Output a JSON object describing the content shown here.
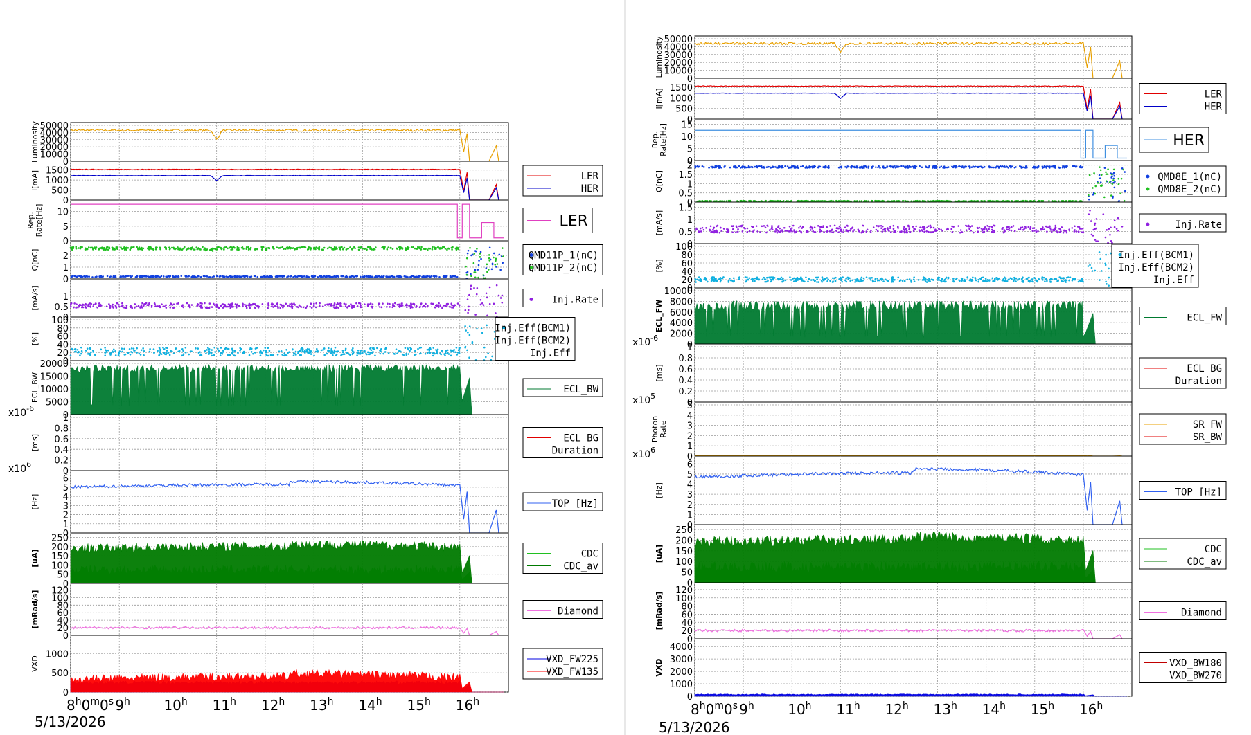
{
  "columns": [
    {
      "date": "5/13/2026",
      "time_ticks": [
        "8",
        "9",
        "10",
        "11",
        "12",
        "13",
        "14",
        "15",
        "16"
      ],
      "panels": [
        {
          "id": "lum",
          "ylabel": "Luminosity",
          "yticks": [
            "50000",
            "40000",
            "30000",
            "20000",
            "10000",
            "0"
          ],
          "ymax": 50000,
          "legend_style": "none",
          "series": [
            {
              "name": "",
              "color": "#e8a000",
              "kind": "line",
              "level": 43000,
              "noise": 1500,
              "dips": [
                [
                  11,
                  0.7
                ]
              ],
              "tail": "lum"
            }
          ]
        },
        {
          "id": "cur",
          "ylabel": "I[mA]",
          "yticks": [
            "1500",
            "1000",
            "500",
            "0"
          ],
          "ymax": 1800,
          "legend_style": "box",
          "series": [
            {
              "name": "LER",
              "color": "#e00000",
              "kind": "line",
              "level": 1530,
              "noise": 15,
              "tail": "cur"
            },
            {
              "name": "HER",
              "color": "#0000c8",
              "kind": "line",
              "level": 1220,
              "noise": 10,
              "dips": [
                [
                  11,
                  0.8
                ]
              ],
              "tail": "cur"
            }
          ]
        },
        {
          "id": "rep",
          "ylabel": "Rep. Rate[Hz]",
          "yticks": [
            "10",
            "5",
            "0"
          ],
          "ymax": 13,
          "legend_style": "big",
          "series": [
            {
              "name": "LER",
              "color": "#e040c0",
              "kind": "step",
              "level": 12.5,
              "noise": 0,
              "tail": "rep"
            }
          ]
        },
        {
          "id": "q",
          "ylabel": "Q[nC]",
          "yticks": [
            "2",
            "1",
            "0"
          ],
          "ymax": 3,
          "legend_style": "box",
          "series": [
            {
              "name": "QMD11P_1(nC)",
              "color": "#1040e0",
              "kind": "dots",
              "level": 0.2,
              "noise": 0.05
            },
            {
              "name": "QMD11P_2(nC)",
              "color": "#20c020",
              "kind": "dots",
              "level": 2.6,
              "noise": 0.12,
              "dips": [
                [
                  10.85,
                  0.9
                ]
              ]
            }
          ]
        },
        {
          "id": "inj",
          "ylabel": "[mA/s]",
          "yticks": [
            "1",
            "0.5",
            "0"
          ],
          "ymax": 1.7,
          "legend_style": "box",
          "series": [
            {
              "name": "Inj.Rate",
              "color": "#9020e0",
              "kind": "dots",
              "level": 0.55,
              "noise": 0.12,
              "tail": "spike"
            }
          ]
        },
        {
          "id": "eff",
          "ylabel": "[%]",
          "yticks": [
            "100",
            "80",
            "60",
            "40",
            "20",
            "0"
          ],
          "ymax": 100,
          "legend_style": "box",
          "series": [
            {
              "name": "Inj.Eff(BCM1)",
              "color": "#10b0e0",
              "kind": "dots",
              "level": 22,
              "noise": 10,
              "tail": "spike"
            },
            {
              "name": "Inj.Eff(BCM2)",
              "color": "#000000",
              "kind": "none"
            },
            {
              "name": "Inj.Eff",
              "color": "#000000",
              "kind": "none"
            }
          ]
        },
        {
          "id": "ecl",
          "ylabel": "ECL_BW",
          "yticks": [
            "20000",
            "15000",
            "10000",
            "5000",
            "0"
          ],
          "ymax": 20000,
          "legend_style": "box",
          "series": [
            {
              "name": "ECL_BW",
              "color": "#007a30",
              "kind": "fillspiky",
              "level": 18000,
              "noise": 1500,
              "tail": "ecl"
            }
          ]
        },
        {
          "id": "eclbg",
          "ylabel": "[ms]",
          "exp": "x10-6",
          "yticks": [
            "1",
            "0.8",
            "0.6",
            "0.4",
            "0.2",
            "0"
          ],
          "ymax": 1,
          "legend_style": "box",
          "series": [
            {
              "name": "ECL BG Duration",
              "color": "#e00000",
              "kind": "none"
            }
          ]
        },
        {
          "id": "top",
          "ylabel": "[Hz]",
          "exp": "x106",
          "yticks": [
            "6",
            "5",
            "4",
            "3",
            "2",
            "1",
            "0"
          ],
          "ymax": 6.5,
          "legend_style": "box",
          "series": [
            {
              "name": "TOP [Hz]",
              "color": "#3060f0",
              "kind": "line",
              "level": 5.0,
              "noise": 0.15,
              "trend": 0.6,
              "tail": "top"
            }
          ]
        },
        {
          "id": "cdc",
          "ylabel": "[uA]",
          "yticks": [
            "250",
            "200",
            "150",
            "100",
            "50",
            "0"
          ],
          "ymax": 260,
          "legend_style": "box",
          "series": [
            {
              "name": "CDC",
              "color": "#20c020",
              "kind": "fill",
              "level": 75,
              "noise": 25,
              "tail": "cdc"
            },
            {
              "name": "CDC_av",
              "color": "#007a00",
              "kind": "fill",
              "level": 190,
              "noise": 25,
              "trend": 25,
              "tail": "cdc"
            }
          ]
        },
        {
          "id": "dia",
          "ylabel": "[mRad/s]",
          "yticks": [
            "120",
            "100",
            "80",
            "60",
            "40",
            "20",
            "0"
          ],
          "ymax": 130,
          "legend_style": "box",
          "series": [
            {
              "name": "Diamond",
              "color": "#f070e0",
              "kind": "line",
              "level": 20,
              "noise": 3,
              "tail": "dia"
            }
          ]
        },
        {
          "id": "vxd",
          "ylabel": "VXD",
          "yticks": [
            "1000",
            "500",
            "0"
          ],
          "ymax": 1400,
          "legend_style": "box",
          "series": [
            {
              "name": "VXD_FW225",
              "color": "#0000e0",
              "kind": "fill",
              "level": 250,
              "noise": 40,
              "tail": "vxd"
            },
            {
              "name": "VXD_FW135",
              "color": "#ff0000",
              "kind": "fill",
              "level": 330,
              "noise": 110,
              "trend": 150,
              "tail": "vxd"
            }
          ]
        }
      ]
    },
    {
      "date": "5/13/2026",
      "time_ticks": [
        "8",
        "9",
        "10",
        "11",
        "12",
        "13",
        "14",
        "15",
        "16"
      ],
      "panels": [
        {
          "id": "lum",
          "ylabel": "Luminosity",
          "yticks": [
            "50000",
            "40000",
            "30000",
            "20000",
            "10000",
            "0"
          ],
          "ymax": 50000,
          "legend_style": "none",
          "series": [
            {
              "name": "",
              "color": "#e8a000",
              "kind": "line",
              "level": 44000,
              "noise": 1500,
              "dips": [
                [
                  11,
                  0.75
                ]
              ],
              "tail": "lum"
            }
          ]
        },
        {
          "id": "cur",
          "ylabel": "I[mA]",
          "yticks": [
            "1500",
            "1000",
            "500",
            "0"
          ],
          "ymax": 1800,
          "legend_style": "box",
          "series": [
            {
              "name": "LER",
              "color": "#e00000",
              "kind": "line",
              "level": 1560,
              "noise": 15,
              "tail": "cur"
            },
            {
              "name": "HER",
              "color": "#0000c8",
              "kind": "line",
              "level": 1220,
              "noise": 10,
              "dips": [
                [
                  11,
                  0.8
                ]
              ],
              "tail": "cur"
            }
          ]
        },
        {
          "id": "rep",
          "ylabel": "Rep. Rate[Hz]",
          "yticks": [
            "15",
            "10",
            "5",
            "0"
          ],
          "ymax": 16,
          "legend_style": "big",
          "series": [
            {
              "name": "HER",
              "color": "#4090e0",
              "kind": "step",
              "level": 12.5,
              "noise": 0,
              "tail": "rep2"
            }
          ]
        },
        {
          "id": "q",
          "ylabel": "Q[nC]",
          "yticks": [
            "2",
            "1.5",
            "1",
            "0.5",
            "0"
          ],
          "ymax": 2.1,
          "legend_style": "box",
          "series": [
            {
              "name": "QMD8E_1(nC)",
              "color": "#1040e0",
              "kind": "dots",
              "level": 1.9,
              "noise": 0.05
            },
            {
              "name": "QMD8E_2(nC)",
              "color": "#20c020",
              "kind": "dots",
              "level": 0.05,
              "noise": 0.02
            }
          ]
        },
        {
          "id": "inj",
          "ylabel": "[mA/s]",
          "yticks": [
            "1.5",
            "1",
            "0.5",
            "0"
          ],
          "ymax": 1.6,
          "legend_style": "box",
          "series": [
            {
              "name": "Inj.Rate",
              "color": "#9020e0",
              "kind": "dots",
              "level": 0.6,
              "noise": 0.15,
              "tail": "spike"
            }
          ]
        },
        {
          "id": "eff",
          "ylabel": "[%]",
          "yticks": [
            "100",
            "80",
            "60",
            "40",
            "20",
            "0"
          ],
          "ymax": 100,
          "legend_style": "box",
          "series": [
            {
              "name": "Inj.Eff(BCM1)",
              "color": "#10b0e0",
              "kind": "dots",
              "level": 20,
              "noise": 6,
              "tail": "spike"
            },
            {
              "name": "Inj.Eff(BCM2)",
              "color": "#000000",
              "kind": "none"
            },
            {
              "name": "Inj.Eff",
              "color": "#000000",
              "kind": "none"
            }
          ]
        },
        {
          "id": "ecl",
          "ylabel": "ECL_FW",
          "yticks": [
            "10000",
            "8000",
            "6000",
            "4000",
            "2000",
            "0"
          ],
          "ymax": 10000,
          "legend_style": "box",
          "series": [
            {
              "name": "ECL_FW",
              "color": "#007a30",
              "kind": "fillspiky",
              "level": 7200,
              "noise": 900,
              "tail": "ecl"
            }
          ]
        },
        {
          "id": "eclbg",
          "ylabel": "[ms]",
          "exp": "x10-6",
          "yticks": [
            "1",
            "0.8",
            "0.6",
            "0.4",
            "0.2",
            "0"
          ],
          "ymax": 1,
          "legend_style": "box",
          "series": [
            {
              "name": "ECL BG Duration",
              "color": "#e00000",
              "kind": "none"
            }
          ]
        },
        {
          "id": "photon",
          "ylabel": "Photon Rate",
          "exp": "x105",
          "yticks": [
            "5",
            "4",
            "3",
            "2",
            "1",
            "0"
          ],
          "ymax": 5,
          "legend_style": "box",
          "series": [
            {
              "name": "SR_FW",
              "color": "#e8a000",
              "kind": "line",
              "level": 0.05,
              "noise": 0
            },
            {
              "name": "SR_BW",
              "color": "#e00000",
              "kind": "none"
            }
          ]
        },
        {
          "id": "top",
          "ylabel": "[Hz]",
          "exp": "x106",
          "yticks": [
            "6",
            "5",
            "4",
            "3",
            "2",
            "1",
            "0"
          ],
          "ymax": 6.5,
          "legend_style": "box",
          "series": [
            {
              "name": "TOP [Hz]",
              "color": "#3060f0",
              "kind": "line",
              "level": 4.7,
              "noise": 0.15,
              "trend": 0.8,
              "tail": "top"
            }
          ]
        },
        {
          "id": "cdc",
          "ylabel": "[uA]",
          "yticks": [
            "250",
            "200",
            "150",
            "100",
            "50",
            "0"
          ],
          "ymax": 260,
          "legend_style": "box",
          "series": [
            {
              "name": "CDC",
              "color": "#20c020",
              "kind": "fill",
              "level": 75,
              "noise": 25,
              "tail": "cdc"
            },
            {
              "name": "CDC_av",
              "color": "#007a00",
              "kind": "fill",
              "level": 190,
              "noise": 25,
              "trend": 25,
              "tail": "cdc"
            }
          ]
        },
        {
          "id": "dia",
          "ylabel": "[mRad/s]",
          "yticks": [
            "120",
            "100",
            "80",
            "60",
            "40",
            "20",
            "0"
          ],
          "ymax": 130,
          "legend_style": "box",
          "series": [
            {
              "name": "Diamond",
              "color": "#f070e0",
              "kind": "line",
              "level": 20,
              "noise": 3,
              "tail": "dia"
            }
          ]
        },
        {
          "id": "vxd",
          "ylabel": "VXD",
          "yticks": [
            "4000",
            "3000",
            "2000",
            "1000",
            "0"
          ],
          "ymax": 4400,
          "legend_style": "box",
          "series": [
            {
              "name": "VXD_BW180",
              "color": "#c00000",
              "kind": "none"
            },
            {
              "name": "VXD_BW270",
              "color": "#0000e0",
              "kind": "fill",
              "level": 150,
              "noise": 40,
              "tail": "vxd2"
            }
          ]
        }
      ]
    }
  ]
}
